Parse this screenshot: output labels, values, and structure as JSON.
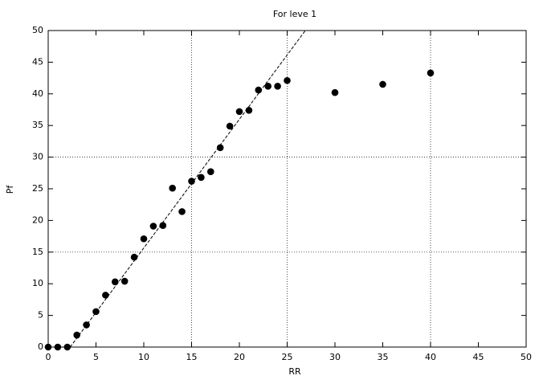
{
  "chart_data": {
    "type": "scatter",
    "title": "For leve 1",
    "xlabel": "RR",
    "ylabel": "Pf",
    "x": [
      0,
      1,
      2,
      3,
      4,
      5,
      6,
      7,
      8,
      9,
      10,
      11,
      12,
      13,
      14,
      15,
      16,
      17,
      18,
      19,
      20,
      21,
      22,
      23,
      24,
      25,
      30,
      35,
      40
    ],
    "values": [
      0,
      0,
      0,
      1.9,
      3.5,
      5.6,
      8.2,
      10.3,
      10.4,
      14.2,
      17.1,
      19.1,
      19.2,
      25.1,
      21.4,
      26.2,
      26.8,
      27.7,
      31.5,
      34.9,
      37.2,
      37.4,
      40.6,
      41.2,
      41.2,
      42.1,
      40.2,
      41.5,
      43.3
    ],
    "color": "#000000",
    "fit_line": {
      "x": [
        2.3,
        26.9
      ],
      "y": [
        0,
        50
      ]
    },
    "xlim": [
      0,
      50
    ],
    "ylim": [
      0,
      50
    ],
    "xticks": [
      0,
      5,
      10,
      15,
      20,
      25,
      30,
      35,
      40,
      45,
      50
    ],
    "yticks": [
      0,
      5,
      10,
      15,
      20,
      25,
      30,
      35,
      40,
      45,
      50
    ],
    "xgrid": [
      15,
      25,
      40
    ],
    "ygrid": [
      15,
      30
    ]
  }
}
